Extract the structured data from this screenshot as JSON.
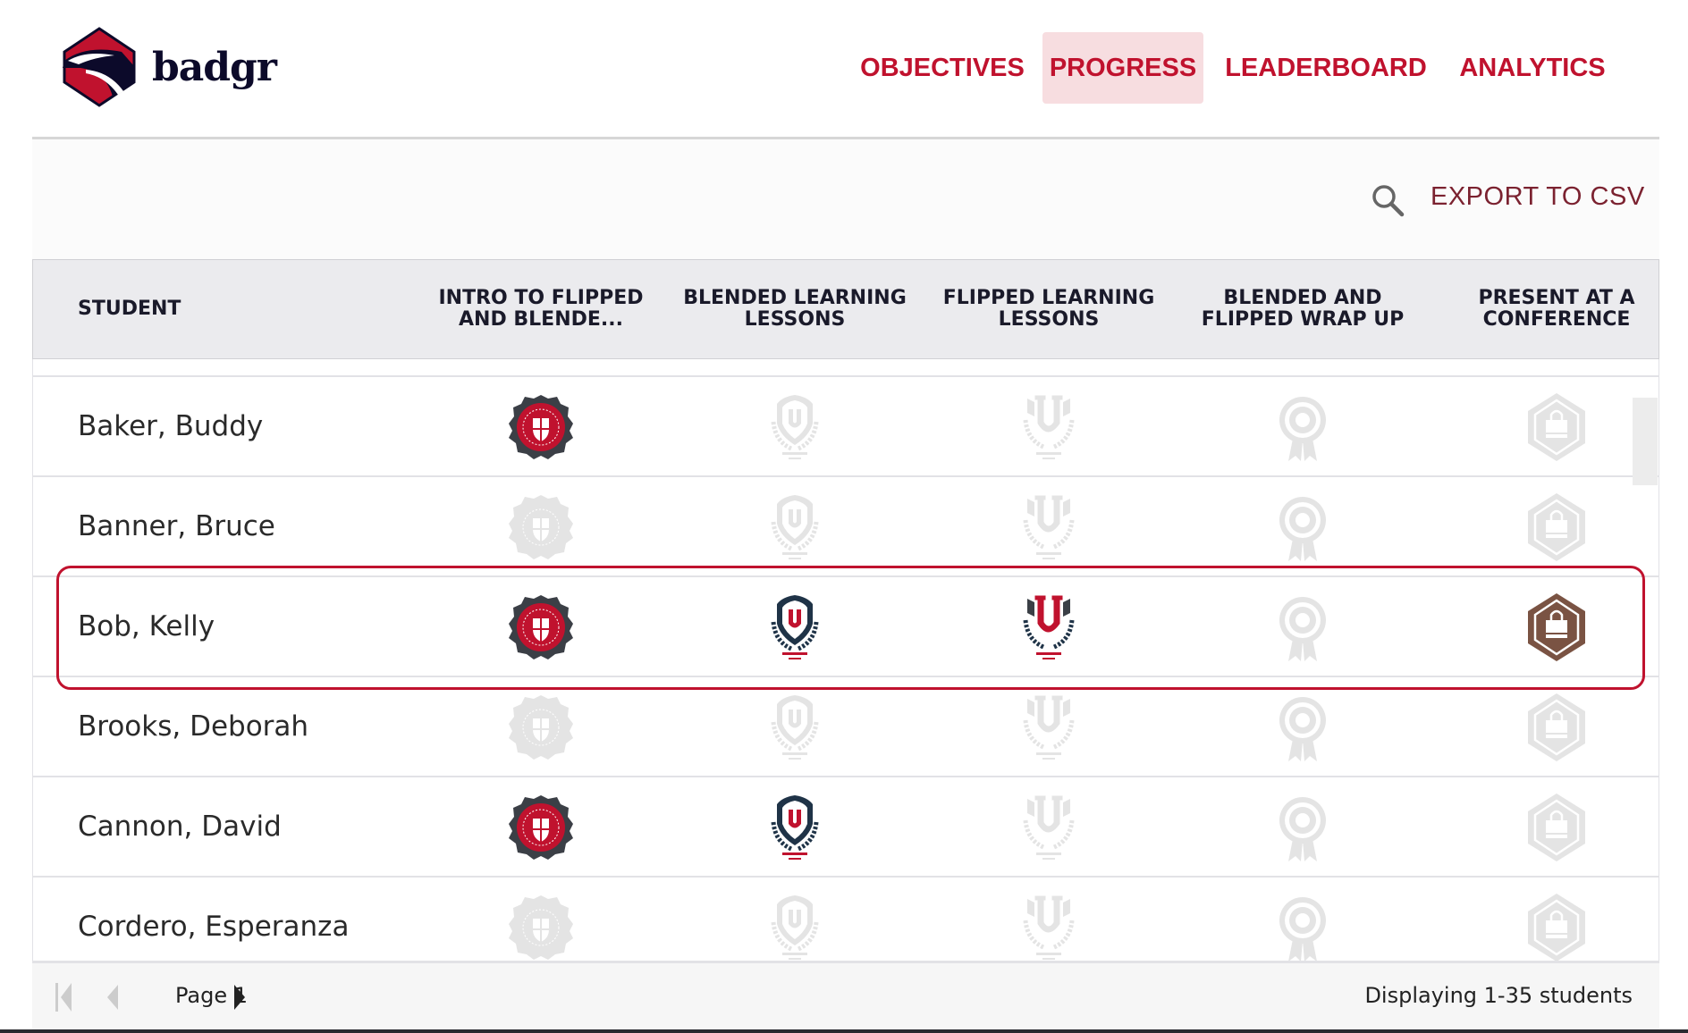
{
  "brand": {
    "name": "badgr"
  },
  "nav": [
    {
      "label": "OBJECTIVES",
      "active": false
    },
    {
      "label": "PROGRESS",
      "active": true
    },
    {
      "label": "LEADERBOARD",
      "active": false
    },
    {
      "label": "ANALYTICS",
      "active": false
    }
  ],
  "toolbar": {
    "export_label": "EXPORT TO CSV",
    "search_icon": "search-icon"
  },
  "table": {
    "columns": [
      "STUDENT",
      "INTRO TO FLIPPED AND BLENDE...",
      "BLENDED LEARNING LESSONS",
      "FLIPPED LEARNING LESSONS",
      "BLENDED AND FLIPPED WRAP UP",
      "PRESENT AT A CONFERENCE"
    ],
    "badge_types": [
      "seal",
      "shield-u",
      "laurel-u",
      "rosette",
      "hex-bag"
    ],
    "rows": [
      {
        "student": "Baker, Buddy",
        "earned": [
          true,
          false,
          false,
          false,
          false
        ]
      },
      {
        "student": "Banner, Bruce",
        "earned": [
          false,
          false,
          false,
          false,
          false
        ]
      },
      {
        "student": "Bob, Kelly",
        "earned": [
          true,
          true,
          true,
          false,
          true
        ],
        "highlighted": true
      },
      {
        "student": "Brooks, Deborah",
        "earned": [
          false,
          false,
          false,
          false,
          false
        ]
      },
      {
        "student": "Cannon, David",
        "earned": [
          true,
          true,
          false,
          false,
          false
        ]
      },
      {
        "student": "Cordero, Esperanza",
        "earned": [
          false,
          false,
          false,
          false,
          false
        ]
      }
    ]
  },
  "footer": {
    "page_label": "Page 1",
    "displaying": "Displaying 1-35 students"
  },
  "colors": {
    "accent": "#c0122e",
    "navy": "#1f3347",
    "brown": "#7a5343",
    "faded": "#e4e4e4"
  }
}
